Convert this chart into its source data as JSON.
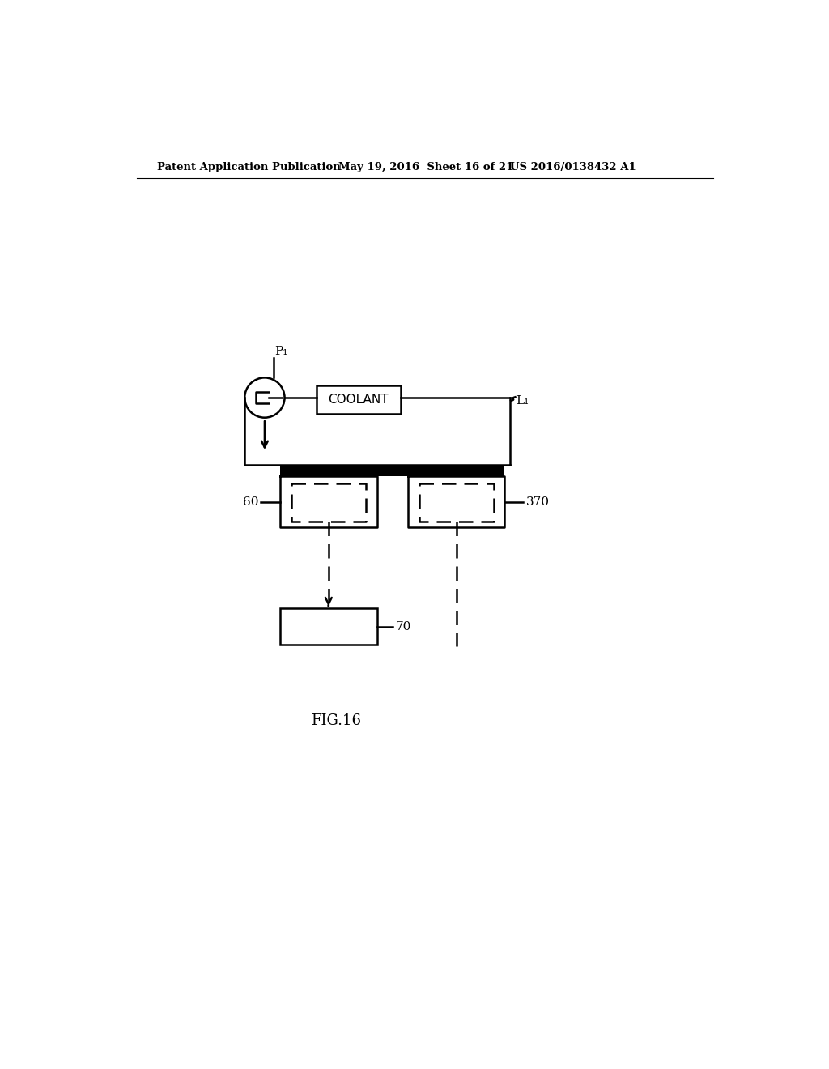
{
  "bg_color": "#ffffff",
  "header_left": "Patent Application Publication",
  "header_mid": "May 19, 2016  Sheet 16 of 21",
  "header_right": "US 2016/0138432 A1",
  "fig_label": "FIG.16",
  "labels": {
    "P1": "P₁",
    "L1": "L₁",
    "60": "60",
    "70": "70",
    "370": "370",
    "COOLANT": "COOLANT"
  },
  "line_color": "#000000",
  "lw": 1.8,
  "thick_lw": 4.5
}
